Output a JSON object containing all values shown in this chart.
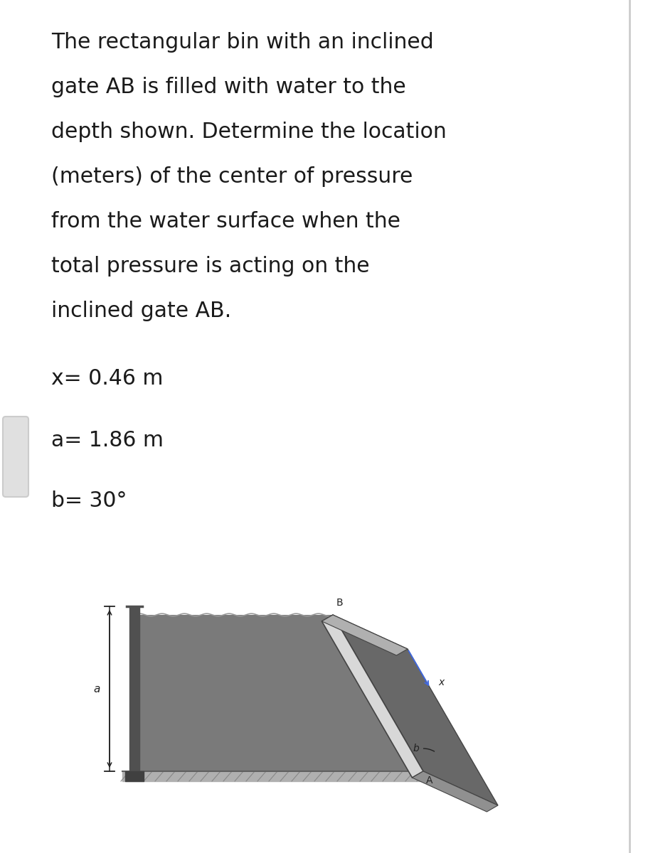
{
  "title_text_lines": [
    "The rectangular bin with an inclined",
    "gate AB is filled with water to the",
    "depth shown. Determine the location",
    "(meters) of the center of pressure",
    "from the water surface when the",
    "total pressure is acting on the",
    "inclined gate AB."
  ],
  "x_label": "x= 0.46 m",
  "a_label": "a= 1.86 m",
  "b_label": "b= 30°",
  "bg_color": "#ffffff",
  "text_color": "#1a1a1a",
  "title_fontsize": 21.5,
  "label_fontsize": 21.5,
  "water_fill": "#7a7a7a",
  "water_top_color": "#999999",
  "wall_color": "#505050",
  "wall_top_color": "#404040",
  "gate_front_color": "#d8d8d8",
  "gate_side_color": "#686868",
  "gate_edge_color": "#444444",
  "ground_fill": "#b0b0b0",
  "ground_hatch_color": "#888888",
  "dim_color": "#222222",
  "label_color": "#222222",
  "blue_line_color": "#4169e1",
  "border_color": "#cccccc",
  "sidebar_color": "#e0e0e0"
}
